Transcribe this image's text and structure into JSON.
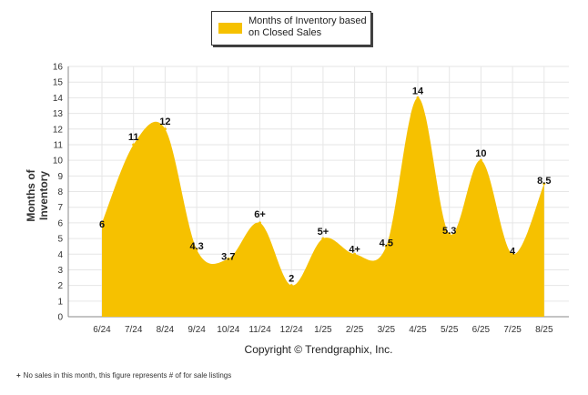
{
  "legend": {
    "label_line1": "Months of Inventory based",
    "label_line2": "on Closed Sales"
  },
  "copyright": "Copyright © Trendgraphix, Inc.",
  "footnote": {
    "mark": "+",
    "text": "No sales in this month, this figure represents # of for sale listings"
  },
  "colors": {
    "area_fill": "#f6c100",
    "gridline": "#e6e6e6",
    "axis": "#888888"
  },
  "chart_data": {
    "type": "area",
    "ylabel": "Months of Inventory",
    "ylim": [
      0,
      16
    ],
    "yticks": [
      0,
      1,
      2,
      3,
      4,
      5,
      6,
      7,
      8,
      9,
      10,
      11,
      12,
      13,
      14,
      15,
      16
    ],
    "grid": true,
    "legend_position": "top-center",
    "categories": [
      "6/24",
      "7/24",
      "8/24",
      "9/24",
      "10/24",
      "11/24",
      "12/24",
      "1/25",
      "2/25",
      "3/25",
      "4/25",
      "5/25",
      "6/25",
      "7/25",
      "8/25"
    ],
    "series": [
      {
        "name": "Months of Inventory based on Closed Sales",
        "values": [
          6,
          11,
          12,
          4.3,
          3.7,
          6,
          2,
          5,
          4,
          4.5,
          14,
          5.3,
          10,
          4,
          8.5
        ],
        "data_labels": [
          "6",
          "11",
          "12",
          "4.3",
          "3.7",
          "6+",
          "2",
          "5+",
          "4+",
          "4.5",
          "14",
          "5.3",
          "10",
          "4",
          "8.5"
        ]
      }
    ]
  }
}
